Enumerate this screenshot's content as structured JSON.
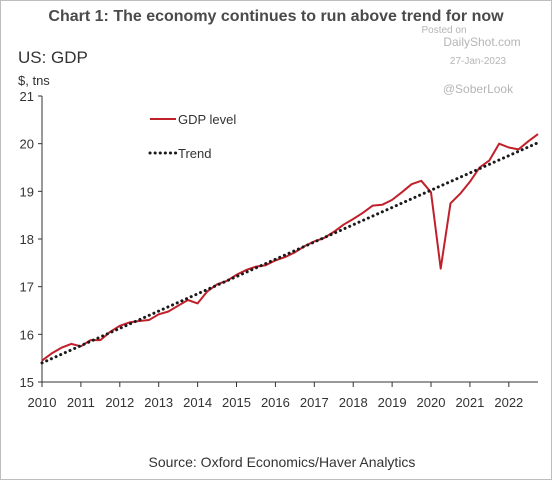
{
  "watermark": {
    "posted_on": "Posted on",
    "site": "DailyShot.com",
    "date": "27-Jan-2023",
    "handle": "@SoberLook"
  },
  "colors": {
    "gdp_line": "#c0202a",
    "trend_line": "#1a1a1a",
    "axis": "#333333"
  },
  "chart_data": {
    "type": "line",
    "title": "Chart 1: The economy continues to run above trend for now",
    "subtitle": "US: GDP",
    "ylabel": "$, tns",
    "source": "Source: Oxford Economics/Haver Analytics",
    "ylim": [
      15,
      21
    ],
    "yticks": [
      "15",
      "16",
      "17",
      "18",
      "19",
      "20",
      "21"
    ],
    "xlim": [
      2010,
      2022.75
    ],
    "xticks": [
      "2010",
      "2011",
      "2012",
      "2013",
      "2014",
      "2015",
      "2016",
      "2017",
      "2018",
      "2019",
      "2020",
      "2021",
      "2022"
    ],
    "grid": false,
    "legend_position": "top-left",
    "series": [
      {
        "name": "GDP level",
        "style": "solid",
        "x": [
          2010,
          2010.25,
          2010.5,
          2010.75,
          2011,
          2011.25,
          2011.5,
          2011.75,
          2012,
          2012.25,
          2012.5,
          2012.75,
          2013,
          2013.25,
          2013.5,
          2013.75,
          2014,
          2014.25,
          2014.5,
          2014.75,
          2015,
          2015.25,
          2015.5,
          2015.75,
          2016,
          2016.25,
          2016.5,
          2016.75,
          2017,
          2017.25,
          2017.5,
          2017.75,
          2018,
          2018.25,
          2018.5,
          2018.75,
          2019,
          2019.25,
          2019.5,
          2019.75,
          2020,
          2020.25,
          2020.5,
          2020.75,
          2021,
          2021.25,
          2021.5,
          2021.75,
          2022,
          2022.25,
          2022.5,
          2022.75
        ],
        "values": [
          15.45,
          15.6,
          15.72,
          15.8,
          15.75,
          15.88,
          15.88,
          16.05,
          16.18,
          16.25,
          16.28,
          16.3,
          16.42,
          16.48,
          16.6,
          16.72,
          16.65,
          16.9,
          17.05,
          17.12,
          17.25,
          17.35,
          17.42,
          17.45,
          17.55,
          17.62,
          17.72,
          17.85,
          17.95,
          18.02,
          18.15,
          18.3,
          18.42,
          18.55,
          18.7,
          18.72,
          18.82,
          18.98,
          19.15,
          19.22,
          18.98,
          17.38,
          18.75,
          18.95,
          19.2,
          19.5,
          19.65,
          20.0,
          19.92,
          19.88,
          20.05,
          20.2
        ]
      },
      {
        "name": "Trend",
        "style": "dotted",
        "x": [
          2010,
          2022.75
        ],
        "values": [
          15.4,
          20.02
        ]
      }
    ]
  }
}
